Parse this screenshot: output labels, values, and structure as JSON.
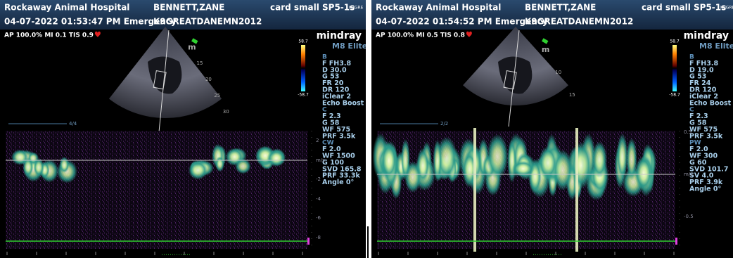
{
  "panels": [
    {
      "header": {
        "hospital": "Rockaway Animal Hospital",
        "patient": "BENNETT,ZANE",
        "preset": "card small",
        "probe": "SP5-1s",
        "tag": "K9GRE",
        "datetime": "04-07-2022 01:53:47 PM Emergency",
        "id": "K9GREATDANEMN2012"
      },
      "status": "AP 100.0% MI 0.1 TIS 0.9",
      "brand": "mindray",
      "model": "M8 Elite",
      "colorbar": [
        "58.7",
        "-58.7"
      ],
      "depth": [
        "m",
        "15",
        "20",
        "25",
        "30"
      ],
      "page": "4/4",
      "scale": [
        "2",
        "m/s",
        "-2",
        "-4",
        "-6",
        "-8"
      ],
      "params": [
        {
          "title": "B",
          "items": [
            "F FH3.8",
            "D 30.0",
            "G 53",
            "FR 20",
            "DR 120",
            "iClear 2",
            "Echo Boost"
          ]
        },
        {
          "title": "C",
          "items": [
            "F 2.3",
            "G 58",
            "WF 575",
            "PRF 3.5k"
          ]
        },
        {
          "title": "CW",
          "items": [
            "F 2.0",
            "WF 1500",
            "G 100",
            "SVD 165.8",
            "PRF 33.3k",
            "Angle 0°"
          ]
        }
      ]
    },
    {
      "header": {
        "hospital": "Rockaway Animal Hospital",
        "patient": "BENNETT,ZANE",
        "preset": "card small",
        "probe": "SP5-1s",
        "tag": "K9GRE",
        "datetime": "04-07-2022 01:54:52 PM Emergency",
        "id": "K9GREATDANEMN2012"
      },
      "status": "AP 100.0% MI 0.5 TIS 0.8",
      "brand": "mindray",
      "model": "M8 Elite",
      "colorbar": [
        "58.7",
        "-58.7"
      ],
      "depth": [
        "m",
        "10",
        "15"
      ],
      "page": "2/2",
      "scale": [
        "0.5",
        "m/s",
        "-0.5"
      ],
      "params": [
        {
          "title": "B",
          "items": [
            "F FH3.8",
            "D 19.0",
            "G 53",
            "FR 24",
            "DR 120",
            "iClear 2",
            "Echo Boost"
          ]
        },
        {
          "title": "C",
          "items": [
            "F 2.3",
            "G 58",
            "WF 575",
            "PRF 3.5k"
          ]
        },
        {
          "title": "PW",
          "items": [
            "F 2.0",
            "WF 300",
            "G 60",
            "SVD 101.7",
            "SV 4.0",
            "PRF 3.9k",
            "Angle 0°"
          ]
        }
      ]
    }
  ]
}
